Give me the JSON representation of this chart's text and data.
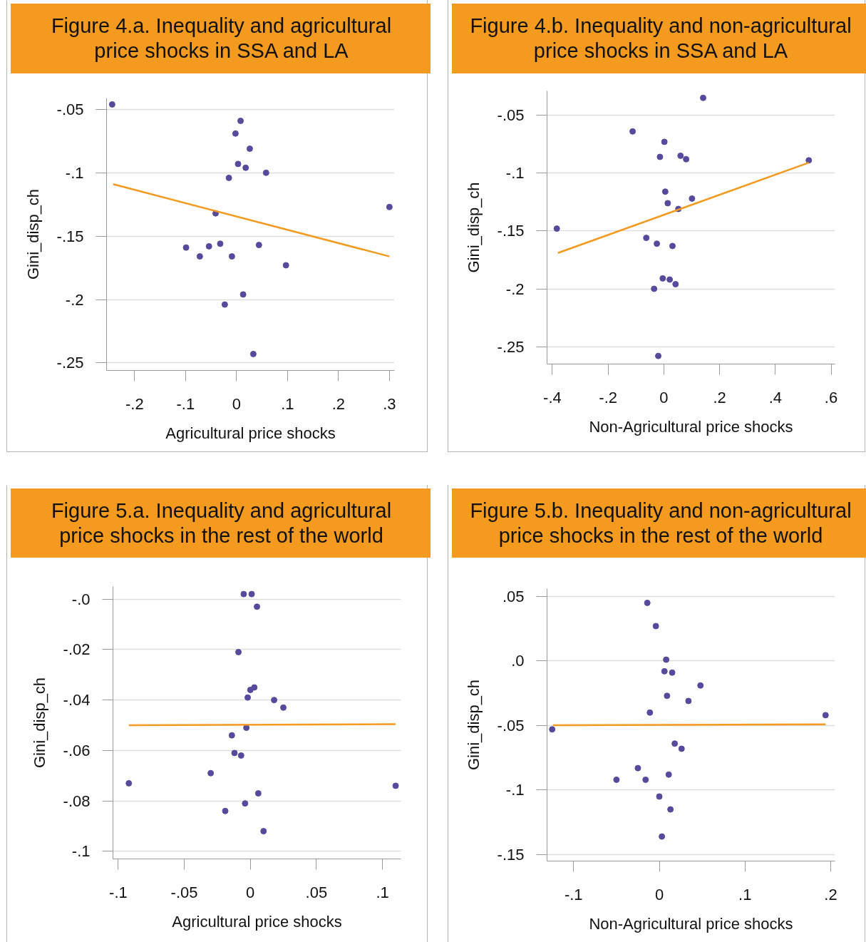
{
  "chart_data": [
    {
      "type": "scatter",
      "title": "Figure 4.a. Inequality and agricultural price shocks in SSA and LA",
      "xlabel": "Agricultural price shocks",
      "ylabel": "Gini_disp_ch",
      "xlim": [
        -0.255,
        0.31
      ],
      "ylim": [
        -0.256,
        -0.041
      ],
      "xticks": [
        {
          "value": -0.2,
          "label": "-.2"
        },
        {
          "value": -0.1,
          "label": "-.1"
        },
        0,
        {
          "value": 0.1,
          "label": ".1"
        },
        {
          "value": 0.2,
          "label": ".2"
        },
        {
          "value": 0.3,
          "label": ".3"
        }
      ],
      "yticks": [
        {
          "value": -0.25,
          "label": "-.25"
        },
        {
          "value": -0.2,
          "label": "-.2"
        },
        {
          "value": -0.15,
          "label": "-.15"
        },
        {
          "value": -0.1,
          "label": "-.1"
        },
        {
          "value": -0.05,
          "label": "-.05"
        }
      ],
      "grid": "y",
      "series": [
        {
          "marker": "circle",
          "color": "#574a9c",
          "x": [
            -0.244,
            0.008,
            -0.002,
            0.026,
            0.003,
            0.018,
            0.058,
            -0.015,
            0.3,
            -0.041,
            -0.099,
            -0.054,
            -0.032,
            -0.072,
            -0.009,
            0.044,
            0.097,
            0.013,
            -0.023,
            0.033
          ],
          "values": [
            -0.046,
            -0.059,
            -0.069,
            -0.081,
            -0.093,
            -0.096,
            -0.1,
            -0.104,
            -0.127,
            -0.132,
            -0.159,
            -0.158,
            -0.156,
            -0.166,
            -0.166,
            -0.157,
            -0.173,
            -0.196,
            -0.204,
            -0.243
          ]
        },
        {
          "type": "line",
          "color": "#f39a1f",
          "x": [
            -0.242,
            0.3
          ],
          "values": [
            -0.109,
            -0.166
          ]
        }
      ]
    },
    {
      "type": "scatter",
      "title": "Figure 4.b. Inequality and non-agricultural price shocks in SSA and LA",
      "xlabel": "Non-Agricultural price shocks",
      "ylabel": "Gini_disp_ch",
      "xlim": [
        -0.419,
        0.614
      ],
      "ylim": [
        -0.265,
        -0.029
      ],
      "xticks": [
        {
          "value": -0.4,
          "label": "-.4"
        },
        {
          "value": -0.2,
          "label": "-.2"
        },
        0,
        {
          "value": 0.2,
          "label": ".2"
        },
        {
          "value": 0.4,
          "label": ".4"
        },
        {
          "value": 0.6,
          "label": ".6"
        }
      ],
      "yticks": [
        {
          "value": -0.25,
          "label": "-.25"
        },
        {
          "value": -0.2,
          "label": "-.2"
        },
        {
          "value": -0.15,
          "label": "-.15"
        },
        {
          "value": -0.1,
          "label": "-.1"
        },
        {
          "value": -0.05,
          "label": "-.05"
        }
      ],
      "grid": "y",
      "series": [
        {
          "marker": "circle",
          "color": "#574a9c",
          "x": [
            0.141,
            -0.112,
            0.002,
            -0.014,
            0.06,
            0.08,
            0.52,
            0.005,
            0.101,
            0.014,
            0.052,
            -0.384,
            -0.063,
            -0.025,
            0.031,
            -0.004,
            0.021,
            0.042,
            -0.035,
            -0.02
          ],
          "values": [
            -0.035,
            -0.064,
            -0.073,
            -0.086,
            -0.085,
            -0.088,
            -0.089,
            -0.116,
            -0.122,
            -0.126,
            -0.131,
            -0.148,
            -0.156,
            -0.161,
            -0.163,
            -0.191,
            -0.192,
            -0.196,
            -0.2,
            -0.258
          ]
        },
        {
          "type": "line",
          "color": "#f39a1f",
          "x": [
            -0.38,
            0.52
          ],
          "values": [
            -0.169,
            -0.091
          ]
        }
      ]
    },
    {
      "type": "scatter",
      "title": "Figure 5.a. Inequality and agricultural price shocks in the rest of the world",
      "xlabel": "Agricultural price shocks",
      "ylabel": "Gini_disp_ch",
      "xlim": [
        -0.104,
        0.114
      ],
      "ylim": [
        -0.103,
        0.005
      ],
      "xticks": [
        {
          "value": -0.1,
          "label": "-.1"
        },
        {
          "value": -0.05,
          "label": "-.05"
        },
        0,
        {
          "value": 0.05,
          "label": ".05"
        },
        {
          "value": 0.1,
          "label": ".1"
        }
      ],
      "yticks": [
        {
          "value": -0.1,
          "label": "-.1"
        },
        {
          "value": -0.08,
          "label": "-.08"
        },
        {
          "value": -0.06,
          "label": "-.06"
        },
        {
          "value": -0.04,
          "label": "-.04"
        },
        {
          "value": -0.02,
          "label": "-.02"
        },
        {
          "value": 0,
          "label": "-.0"
        }
      ],
      "grid": "y",
      "series": [
        {
          "marker": "circle",
          "color": "#574a9c",
          "x": [
            -0.005,
            0.001,
            0.005,
            -0.009,
            0.003,
            0.0,
            -0.002,
            0.018,
            0.025,
            -0.003,
            -0.014,
            -0.012,
            -0.007,
            -0.03,
            -0.092,
            0.11,
            0.006,
            -0.004,
            -0.019,
            0.01
          ],
          "values": [
            0.002,
            0.002,
            -0.003,
            -0.021,
            -0.035,
            -0.036,
            -0.039,
            -0.04,
            -0.043,
            -0.051,
            -0.054,
            -0.061,
            -0.062,
            -0.069,
            -0.073,
            -0.074,
            -0.077,
            -0.081,
            -0.084,
            -0.092
          ]
        },
        {
          "type": "line",
          "color": "#f39a1f",
          "x": [
            -0.092,
            0.11
          ],
          "values": [
            -0.05,
            -0.0496
          ]
        }
      ]
    },
    {
      "type": "scatter",
      "title": "Figure 5.b. Inequality and non-agricultural price shocks in the rest of the world",
      "xlabel": "Non-Agricultural price shocks",
      "ylabel": "Gini_disp_ch",
      "xlim": [
        -0.131,
        0.205
      ],
      "ylim": [
        -0.155,
        0.056
      ],
      "xticks": [
        {
          "value": -0.1,
          "label": "-.1"
        },
        0,
        {
          "value": 0.1,
          "label": ".1"
        },
        {
          "value": 0.2,
          "label": ".2"
        }
      ],
      "yticks": [
        {
          "value": -0.15,
          "label": "-.15"
        },
        {
          "value": -0.1,
          "label": "-.1"
        },
        {
          "value": -0.05,
          "label": "-.05"
        },
        {
          "value": 0,
          "label": ".0"
        },
        {
          "value": 0.05,
          "label": ".05"
        }
      ],
      "grid": "y",
      "series": [
        {
          "marker": "circle",
          "color": "#574a9c",
          "x": [
            -0.014,
            -0.004,
            0.008,
            0.006,
            0.015,
            0.048,
            0.009,
            0.034,
            -0.011,
            0.194,
            -0.125,
            0.018,
            0.026,
            -0.025,
            -0.05,
            -0.016,
            0.011,
            0.0,
            0.013,
            0.003
          ],
          "values": [
            0.045,
            0.027,
            0.001,
            -0.008,
            -0.009,
            -0.019,
            -0.027,
            -0.031,
            -0.04,
            -0.042,
            -0.053,
            -0.064,
            -0.068,
            -0.083,
            -0.092,
            -0.092,
            -0.088,
            -0.105,
            -0.115,
            -0.136
          ]
        },
        {
          "type": "line",
          "color": "#f39a1f",
          "x": [
            -0.124,
            0.194
          ],
          "values": [
            -0.0498,
            -0.0491
          ]
        }
      ]
    }
  ]
}
